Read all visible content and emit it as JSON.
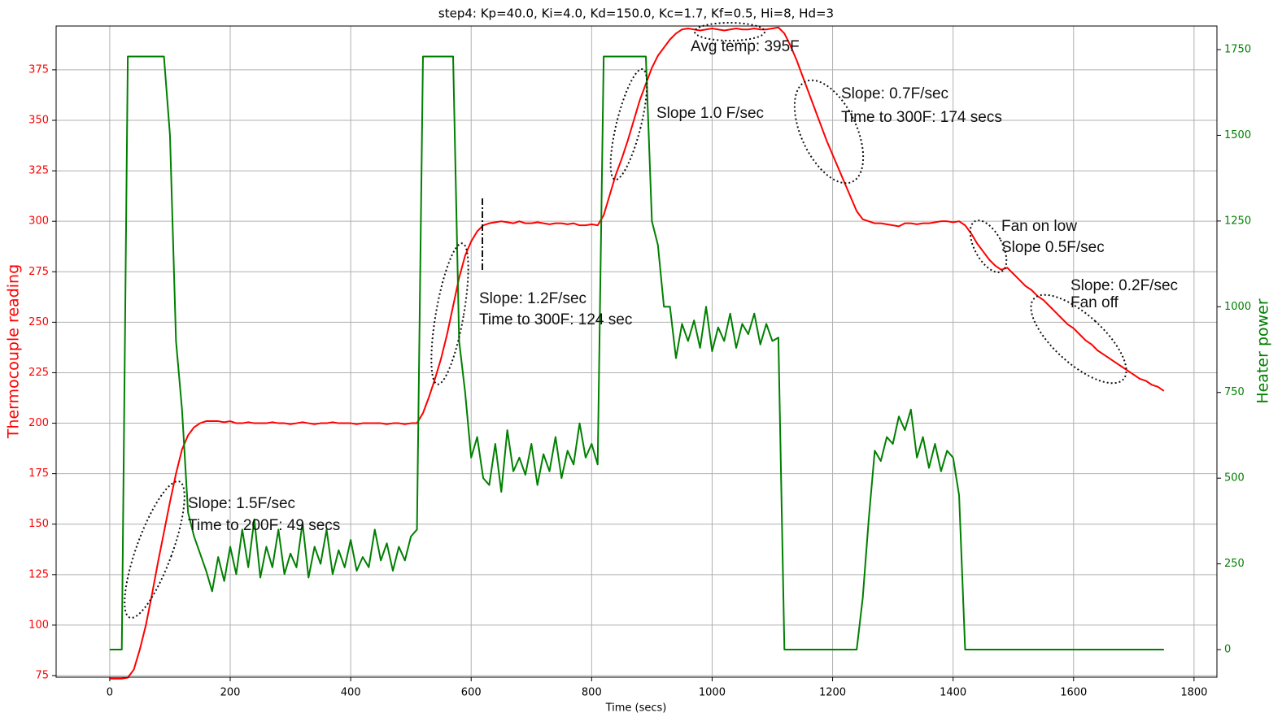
{
  "chart_data": {
    "type": "line",
    "title": "step4: Kp=40.0, Ki=4.0, Kd=150.0, Kc=1.7, Kf=0.5, Hi=8, Hd=3",
    "xlabel": "Time (secs)",
    "ylabel": "Thermocouple reading",
    "y2label": "Heater power",
    "xlim": [
      -89,
      1838
    ],
    "ylim": [
      74.2,
      396.7
    ],
    "y2lim": [
      -80.6,
      1818.8
    ],
    "xticks": [
      0,
      200,
      400,
      600,
      800,
      1000,
      1200,
      1400,
      1600,
      1800
    ],
    "yticks": [
      75,
      100,
      125,
      150,
      175,
      200,
      225,
      250,
      275,
      300,
      325,
      350,
      375
    ],
    "y2ticks": [
      0,
      250,
      500,
      750,
      1000,
      1250,
      1500,
      1750
    ],
    "grid": true,
    "ylabel_color": "red",
    "y2label_color": "green",
    "x": [
      0,
      10,
      20,
      30,
      40,
      50,
      60,
      70,
      80,
      90,
      100,
      110,
      120,
      130,
      140,
      150,
      160,
      170,
      180,
      190,
      200,
      210,
      220,
      230,
      240,
      250,
      260,
      270,
      280,
      290,
      300,
      310,
      320,
      330,
      340,
      350,
      360,
      370,
      380,
      390,
      400,
      410,
      420,
      430,
      440,
      450,
      460,
      470,
      480,
      490,
      500,
      510,
      520,
      530,
      540,
      550,
      560,
      570,
      580,
      590,
      600,
      610,
      620,
      630,
      640,
      650,
      660,
      670,
      680,
      690,
      700,
      710,
      720,
      730,
      740,
      750,
      760,
      770,
      780,
      790,
      800,
      810,
      820,
      830,
      840,
      850,
      860,
      870,
      880,
      890,
      900,
      910,
      920,
      930,
      940,
      950,
      960,
      970,
      980,
      990,
      1000,
      1010,
      1020,
      1030,
      1040,
      1050,
      1060,
      1070,
      1080,
      1090,
      1100,
      1110,
      1120,
      1130,
      1140,
      1150,
      1160,
      1170,
      1180,
      1190,
      1200,
      1210,
      1220,
      1230,
      1240,
      1250,
      1260,
      1270,
      1280,
      1290,
      1300,
      1310,
      1320,
      1330,
      1340,
      1350,
      1360,
      1370,
      1380,
      1390,
      1400,
      1410,
      1420,
      1430,
      1440,
      1450,
      1460,
      1470,
      1480,
      1490,
      1500,
      1510,
      1520,
      1530,
      1540,
      1550,
      1560,
      1570,
      1580,
      1590,
      1600,
      1610,
      1620,
      1630,
      1640,
      1650,
      1660,
      1670,
      1680,
      1690,
      1700,
      1710,
      1720,
      1730,
      1740,
      1750
    ],
    "series": [
      {
        "color": "red",
        "values": [
          73.5,
          73.5,
          73.5,
          74,
          78,
          88,
          100,
          115,
          131,
          146,
          161,
          175,
          187,
          194,
          198,
          200,
          201,
          201,
          201,
          200.5,
          201,
          200,
          200,
          200.5,
          200,
          200,
          200,
          200.5,
          200,
          200,
          199.5,
          200,
          200.5,
          200,
          199.5,
          200,
          200,
          200.5,
          200,
          200,
          200,
          199.5,
          200,
          200,
          200,
          200,
          199.5,
          200,
          200,
          199.5,
          200,
          200,
          205,
          213,
          222,
          232,
          244,
          258,
          272,
          283,
          290,
          295,
          298,
          299,
          299.5,
          300,
          299.5,
          299,
          300,
          299,
          299,
          299.5,
          299,
          298.5,
          299,
          299,
          298.5,
          299,
          298,
          298,
          298.5,
          298,
          303,
          313,
          323,
          331,
          340,
          350,
          360,
          368,
          376,
          382,
          386,
          390,
          393,
          395,
          395.5,
          395,
          394.5,
          395,
          395.5,
          395,
          394.5,
          395,
          395.5,
          395,
          395,
          395.5,
          395,
          395,
          395.5,
          396,
          393,
          387,
          380,
          372,
          364,
          356,
          348,
          340,
          333,
          326,
          319,
          312,
          305,
          301,
          300,
          299,
          299,
          298.5,
          298,
          297.5,
          299,
          299,
          298.5,
          299,
          299,
          299.5,
          300,
          300,
          299.5,
          300,
          298,
          294,
          289,
          285,
          281,
          278,
          276,
          277,
          274,
          271,
          268,
          266,
          263,
          261,
          258,
          255,
          252,
          249,
          247,
          244,
          241,
          239,
          236,
          234,
          232,
          230,
          228,
          226,
          224,
          222,
          221,
          219,
          218,
          216
        ]
      },
      {
        "color": "green",
        "axis": "y2",
        "values": [
          0,
          0,
          0,
          1730,
          1730,
          1730,
          1730,
          1730,
          1730,
          1730,
          1500,
          900,
          700,
          400,
          330,
          280,
          230,
          170,
          270,
          200,
          300,
          220,
          350,
          240,
          380,
          210,
          300,
          240,
          350,
          220,
          280,
          240,
          370,
          210,
          300,
          250,
          350,
          220,
          290,
          240,
          320,
          230,
          270,
          240,
          350,
          260,
          310,
          230,
          300,
          260,
          330,
          350,
          1730,
          1730,
          1730,
          1730,
          1730,
          1730,
          900,
          750,
          560,
          620,
          500,
          480,
          600,
          460,
          640,
          520,
          560,
          510,
          600,
          480,
          570,
          520,
          620,
          500,
          580,
          540,
          660,
          560,
          600,
          540,
          1730,
          1730,
          1730,
          1730,
          1730,
          1730,
          1730,
          1730,
          1250,
          1180,
          1000,
          1000,
          850,
          950,
          900,
          960,
          880,
          1000,
          870,
          940,
          900,
          980,
          880,
          950,
          920,
          980,
          890,
          950,
          900,
          910,
          0,
          0,
          0,
          0,
          0,
          0,
          0,
          0,
          0,
          0,
          0,
          0,
          0,
          150,
          380,
          580,
          550,
          620,
          600,
          680,
          640,
          700,
          560,
          620,
          530,
          600,
          520,
          580,
          560,
          450,
          0,
          0,
          0,
          0,
          0,
          0,
          0,
          0,
          0,
          0,
          0,
          0,
          0,
          0,
          0,
          0,
          0,
          0,
          0,
          0,
          0,
          0,
          0,
          0,
          0,
          0,
          0,
          0,
          0,
          0,
          0,
          0,
          0,
          0
        ]
      }
    ],
    "annotations": [
      "Slope: 1.5F/sec",
      "Time to 200F: 49 secs",
      "Slope: 1.2F/sec",
      "Time to 300F: 124 sec",
      "Slope 1.0 F/sec",
      "Avg temp: 395F",
      "Slope: 0.7F/sec",
      "Time to 300F: 174 secs",
      "Fan on low",
      "Slope 0.5F/sec",
      "Slope: 0.2F/sec",
      "Fan off"
    ]
  }
}
